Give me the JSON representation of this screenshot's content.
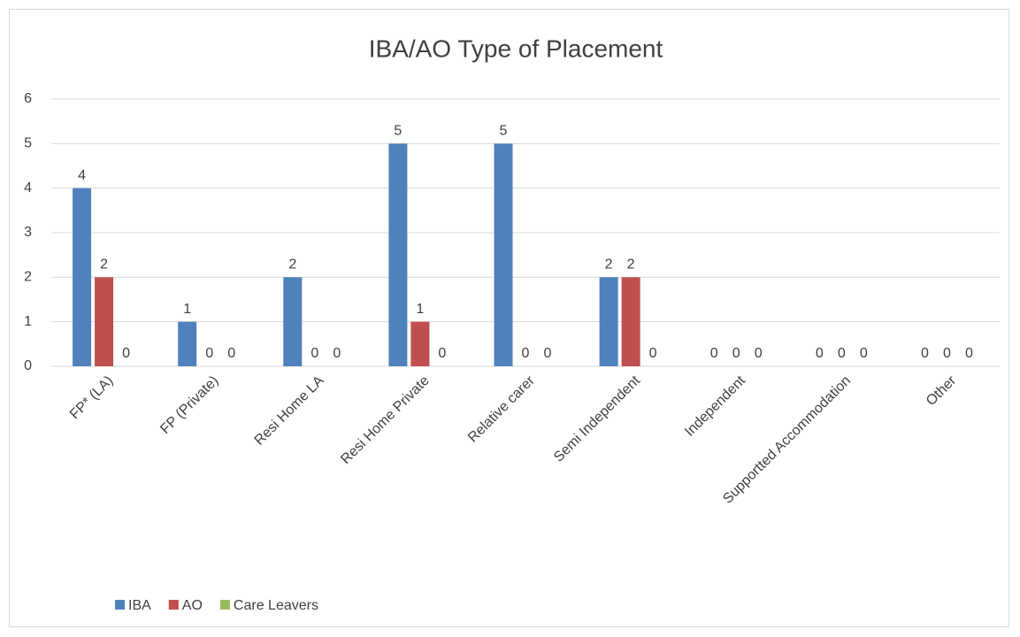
{
  "chart_data": {
    "type": "bar",
    "title": "IBA/AO Type of Placement",
    "categories": [
      "FP* (LA)",
      "FP (Private)",
      "Resi Home LA",
      "Resi Home Private",
      "Relative carer",
      "Semi Independent",
      "Independent",
      "Supportted Accommodation",
      "Other"
    ],
    "series": [
      {
        "name": "IBA",
        "color": "#4f81bd",
        "values": [
          4,
          1,
          2,
          5,
          5,
          2,
          0,
          0,
          0
        ]
      },
      {
        "name": "AO",
        "color": "#c0504d",
        "values": [
          2,
          0,
          0,
          1,
          0,
          2,
          0,
          0,
          0
        ]
      },
      {
        "name": "Care Leavers",
        "color": "#9bbb59",
        "values": [
          0,
          0,
          0,
          0,
          0,
          0,
          0,
          0,
          0
        ]
      }
    ],
    "ylim": [
      0,
      6
    ],
    "yticks": [
      0,
      1,
      2,
      3,
      4,
      5,
      6
    ],
    "grid": true
  }
}
